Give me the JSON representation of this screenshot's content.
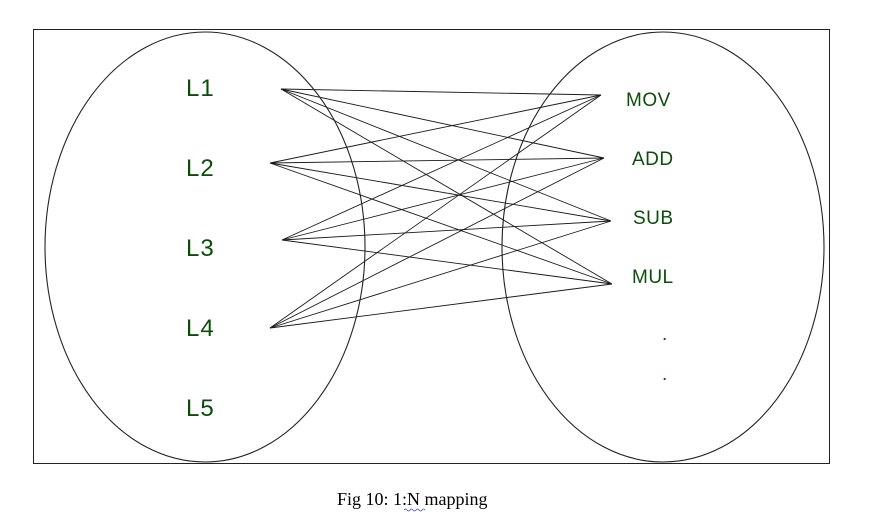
{
  "diagram": {
    "left_set": [
      "L1",
      "L2",
      "L3",
      "L4",
      "L5"
    ],
    "right_set": [
      "MOV",
      "ADD",
      "SUB",
      "MUL",
      ".",
      "."
    ],
    "edges": [
      [
        "L1",
        "MOV"
      ],
      [
        "L1",
        "ADD"
      ],
      [
        "L1",
        "SUB"
      ],
      [
        "L1",
        "MUL"
      ],
      [
        "L2",
        "MOV"
      ],
      [
        "L2",
        "ADD"
      ],
      [
        "L2",
        "SUB"
      ],
      [
        "L2",
        "MUL"
      ],
      [
        "L3",
        "MOV"
      ],
      [
        "L3",
        "ADD"
      ],
      [
        "L3",
        "SUB"
      ],
      [
        "L3",
        "MUL"
      ],
      [
        "L4",
        "MOV"
      ],
      [
        "L4",
        "ADD"
      ],
      [
        "L4",
        "SUB"
      ],
      [
        "L4",
        "MUL"
      ]
    ]
  },
  "caption": "Fig 10: 1:N mapping",
  "colors": {
    "label": "#0b4d0b",
    "line": "#1a1a1a"
  }
}
